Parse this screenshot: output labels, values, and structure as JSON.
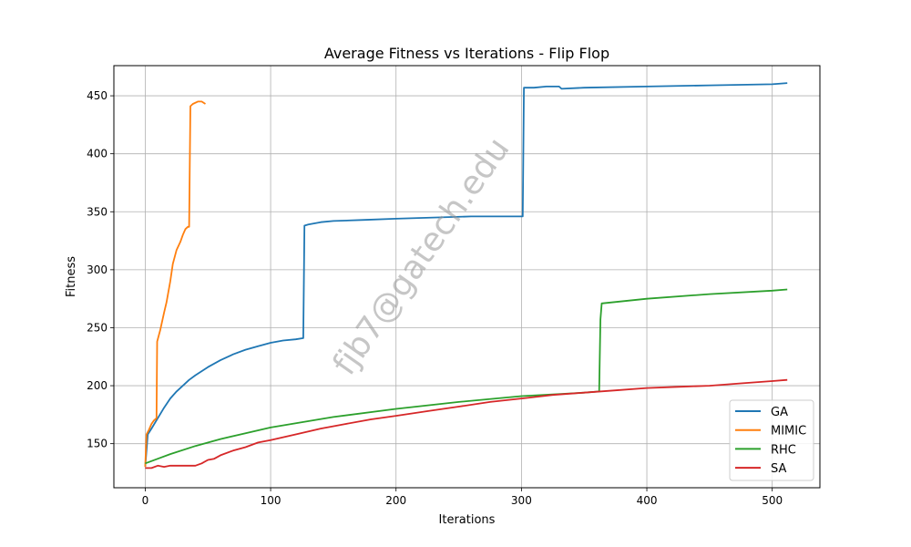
{
  "chart_data": {
    "type": "line",
    "title": "Average Fitness vs Iterations - Flip Flop",
    "xlabel": "Iterations",
    "ylabel": "Fitness",
    "xlim": [
      -25,
      538
    ],
    "ylim": [
      112,
      476
    ],
    "xticks": [
      0,
      100,
      200,
      300,
      400,
      500
    ],
    "yticks": [
      150,
      200,
      250,
      300,
      350,
      400,
      450
    ],
    "grid": true,
    "legend_position": "lower right",
    "watermark": "fjb7@gatech.edu",
    "series": [
      {
        "name": "GA",
        "color": "#1f77b4",
        "x": [
          0,
          2,
          5,
          10,
          15,
          20,
          25,
          30,
          35,
          40,
          50,
          60,
          70,
          80,
          90,
          100,
          110,
          120,
          126,
          127,
          130,
          140,
          150,
          175,
          200,
          230,
          260,
          290,
          301,
          302,
          310,
          320,
          330,
          332,
          350,
          400,
          450,
          500,
          512
        ],
        "y": [
          130,
          158,
          163,
          172,
          181,
          189,
          195,
          200,
          205,
          209,
          216,
          222,
          227,
          231,
          234,
          237,
          239,
          240,
          241,
          338,
          339,
          341,
          342,
          343,
          344,
          345,
          346,
          346,
          346,
          457,
          457,
          458,
          458,
          456,
          457,
          458,
          459,
          460,
          461
        ]
      },
      {
        "name": "MIMIC",
        "color": "#ff7f0e",
        "x": [
          0,
          1,
          3,
          5,
          7,
          9,
          9.5,
          12,
          15,
          17,
          20,
          22,
          25,
          28,
          30,
          32,
          34,
          35,
          36,
          38,
          42,
          45,
          48
        ],
        "y": [
          130,
          158,
          162,
          167,
          170,
          172,
          238,
          248,
          263,
          272,
          290,
          305,
          317,
          324,
          330,
          335,
          337,
          337,
          441,
          443,
          445,
          445,
          443
        ]
      },
      {
        "name": "RHC",
        "color": "#2ca02c",
        "x": [
          0,
          10,
          20,
          40,
          60,
          80,
          100,
          150,
          200,
          250,
          300,
          350,
          362,
          363,
          364,
          400,
          450,
          500,
          512
        ],
        "y": [
          133,
          137,
          141,
          148,
          154,
          159,
          164,
          173,
          180,
          186,
          191,
          194,
          195,
          257,
          271,
          275,
          279,
          282,
          283
        ]
      },
      {
        "name": "SA",
        "color": "#d62728",
        "x": [
          0,
          5,
          10,
          15,
          20,
          30,
          40,
          45,
          50,
          55,
          60,
          70,
          80,
          90,
          100,
          120,
          140,
          160,
          180,
          200,
          225,
          250,
          275,
          300,
          325,
          350,
          375,
          400,
          425,
          450,
          475,
          500,
          512
        ],
        "y": [
          129,
          129,
          131,
          130,
          131,
          131,
          131,
          133,
          136,
          137,
          140,
          144,
          147,
          151,
          153,
          158,
          163,
          167,
          171,
          174,
          178,
          182,
          186,
          189,
          192,
          194,
          196,
          198,
          199,
          200,
          202,
          204,
          205
        ]
      }
    ]
  }
}
